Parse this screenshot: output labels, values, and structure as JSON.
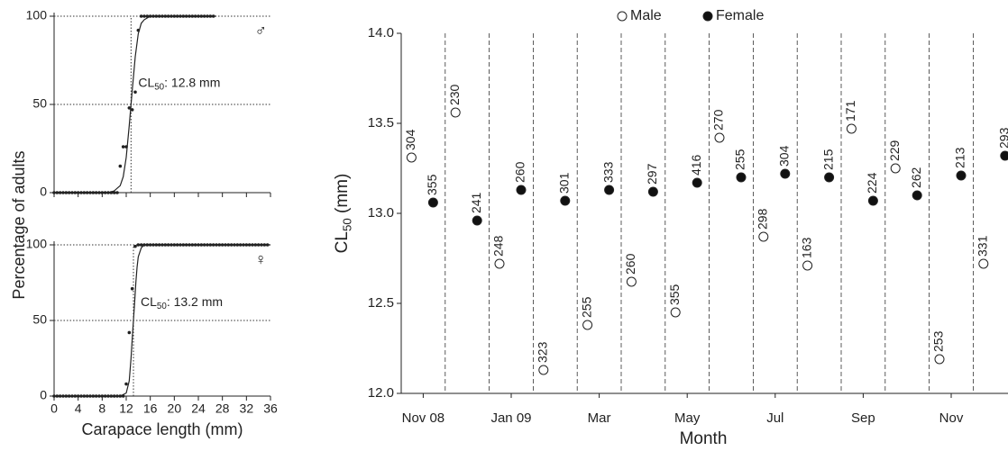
{
  "chart_data": [
    {
      "type": "scatter",
      "y_label": "Percentage of adults",
      "symbol": "♂",
      "cl50": 12.8,
      "annotation": {
        "text": "CL",
        "subscript": "50",
        "suffix": ": 12.8 mm"
      },
      "xlim": [
        0,
        36
      ],
      "xticks": [
        0,
        4,
        8,
        12,
        16,
        20,
        24,
        28,
        32,
        36
      ],
      "ylim": [
        0,
        100
      ],
      "yticks": [
        0,
        50,
        100
      ],
      "points": {
        "x": [
          0,
          0.5,
          1,
          1.5,
          2,
          2.5,
          3,
          3.5,
          4,
          4.5,
          5,
          5.5,
          6,
          6.5,
          7,
          7.5,
          8,
          8.5,
          9,
          9.5,
          10,
          10.5,
          11,
          11.5,
          12,
          12.5,
          13,
          13.5,
          14,
          14.5,
          15,
          15.5,
          16,
          16.5,
          17,
          17.5,
          18,
          18.5,
          19,
          19.5,
          20,
          20.5,
          21,
          21.5,
          22,
          22.5,
          23,
          23.5,
          24,
          24.5,
          25,
          25.5,
          26,
          26.5
        ],
        "values": [
          0,
          0,
          0,
          0,
          0,
          0,
          0,
          0,
          0,
          0,
          0,
          0,
          0,
          0,
          0,
          0,
          0,
          0,
          0,
          0,
          0,
          0,
          15,
          26,
          26,
          48,
          47,
          57,
          92,
          100,
          100,
          100,
          100,
          100,
          100,
          100,
          100,
          100,
          100,
          100,
          100,
          100,
          100,
          100,
          100,
          100,
          100,
          100,
          100,
          100,
          100,
          100,
          100,
          100
        ]
      },
      "fit": {
        "x": [
          0,
          9,
          10,
          11,
          11.5,
          12,
          12.5,
          12.8,
          13,
          13.5,
          14,
          14.5,
          15,
          16,
          27
        ],
        "values": [
          0,
          0,
          1,
          4,
          9,
          20,
          38,
          50,
          58,
          77,
          90,
          96,
          98,
          100,
          100
        ]
      }
    },
    {
      "type": "scatter",
      "x_label": "Carapace length (mm)",
      "symbol": "♀",
      "cl50": 13.2,
      "annotation": {
        "text": "CL",
        "subscript": "50",
        "suffix": ": 13.2 mm"
      },
      "xlim": [
        0,
        36
      ],
      "xticks": [
        0,
        4,
        8,
        12,
        16,
        20,
        24,
        28,
        32,
        36
      ],
      "ylim": [
        0,
        100
      ],
      "yticks": [
        0,
        50,
        100
      ],
      "points": {
        "x": [
          0,
          0.5,
          1,
          1.5,
          2,
          2.5,
          3,
          3.5,
          4,
          4.5,
          5,
          5.5,
          6,
          6.5,
          7,
          7.5,
          8,
          8.5,
          9,
          9.5,
          10,
          10.5,
          11,
          11.5,
          12,
          12.5,
          13,
          13.5,
          14,
          14.5,
          15,
          15.5,
          16,
          16.5,
          17,
          17.5,
          18,
          18.5,
          19,
          19.5,
          20,
          20.5,
          21,
          21.5,
          22,
          22.5,
          23,
          23.5,
          24,
          24.5,
          25,
          25.5,
          26,
          26.5,
          27,
          27.5,
          28,
          28.5,
          29,
          29.5,
          30,
          30.5,
          31,
          31.5,
          32,
          32.5,
          33,
          33.5,
          34,
          34.5,
          35,
          35.5
        ],
        "values": [
          0,
          0,
          0,
          0,
          0,
          0,
          0,
          0,
          0,
          0,
          0,
          0,
          0,
          0,
          0,
          0,
          0,
          0,
          0,
          0,
          0,
          0,
          0,
          0,
          8,
          42,
          71,
          99,
          100,
          100,
          100,
          100,
          100,
          100,
          100,
          100,
          100,
          100,
          100,
          100,
          100,
          100,
          100,
          100,
          100,
          100,
          100,
          100,
          100,
          100,
          100,
          100,
          100,
          100,
          100,
          100,
          100,
          100,
          100,
          100,
          100,
          100,
          100,
          100,
          100,
          100,
          100,
          100,
          100,
          100,
          100,
          100
        ]
      },
      "fit": {
        "x": [
          0,
          11,
          12,
          12.5,
          12.8,
          13,
          13.2,
          13.4,
          13.6,
          13.8,
          14,
          14.5,
          15,
          36
        ],
        "values": [
          0,
          0,
          2,
          10,
          25,
          38,
          50,
          62,
          75,
          85,
          92,
          98,
          100,
          100
        ]
      }
    },
    {
      "type": "dot",
      "x_label": "Month",
      "y_label": {
        "text": "CL",
        "subscript": "50",
        "suffix": " (mm)"
      },
      "categories": [
        "Nov 08",
        null,
        "Jan 09",
        null,
        "Mar",
        null,
        "May",
        null,
        "Jul",
        null,
        "Sep",
        null,
        "Nov",
        null
      ],
      "ylim": [
        12,
        14
      ],
      "yticks": [
        {
          "value": 12,
          "label": "12.0"
        },
        {
          "value": 12.5,
          "label": "12.5"
        },
        {
          "value": 13,
          "label": "13.0"
        },
        {
          "value": 13.5,
          "label": "13.5"
        },
        {
          "value": 14,
          "label": "14.0"
        }
      ],
      "series": [
        {
          "name": "Male",
          "color": "#ffffff",
          "values": [
            13.31,
            13.56,
            12.72,
            12.13,
            12.38,
            12.62,
            12.45,
            13.42,
            12.87,
            12.71,
            13.47,
            13.25,
            12.19,
            12.72
          ],
          "n": [
            304,
            230,
            248,
            323,
            255,
            260,
            355,
            270,
            298,
            163,
            171,
            229,
            253,
            331
          ]
        },
        {
          "name": "Female",
          "color": "#111111",
          "values": [
            13.06,
            12.96,
            13.13,
            13.07,
            13.13,
            13.12,
            13.17,
            13.2,
            13.22,
            13.2,
            13.07,
            13.1,
            13.21,
            13.32
          ],
          "n": [
            355,
            241,
            260,
            301,
            333,
            297,
            416,
            255,
            304,
            215,
            224,
            262,
            213,
            293
          ]
        }
      ]
    }
  ]
}
